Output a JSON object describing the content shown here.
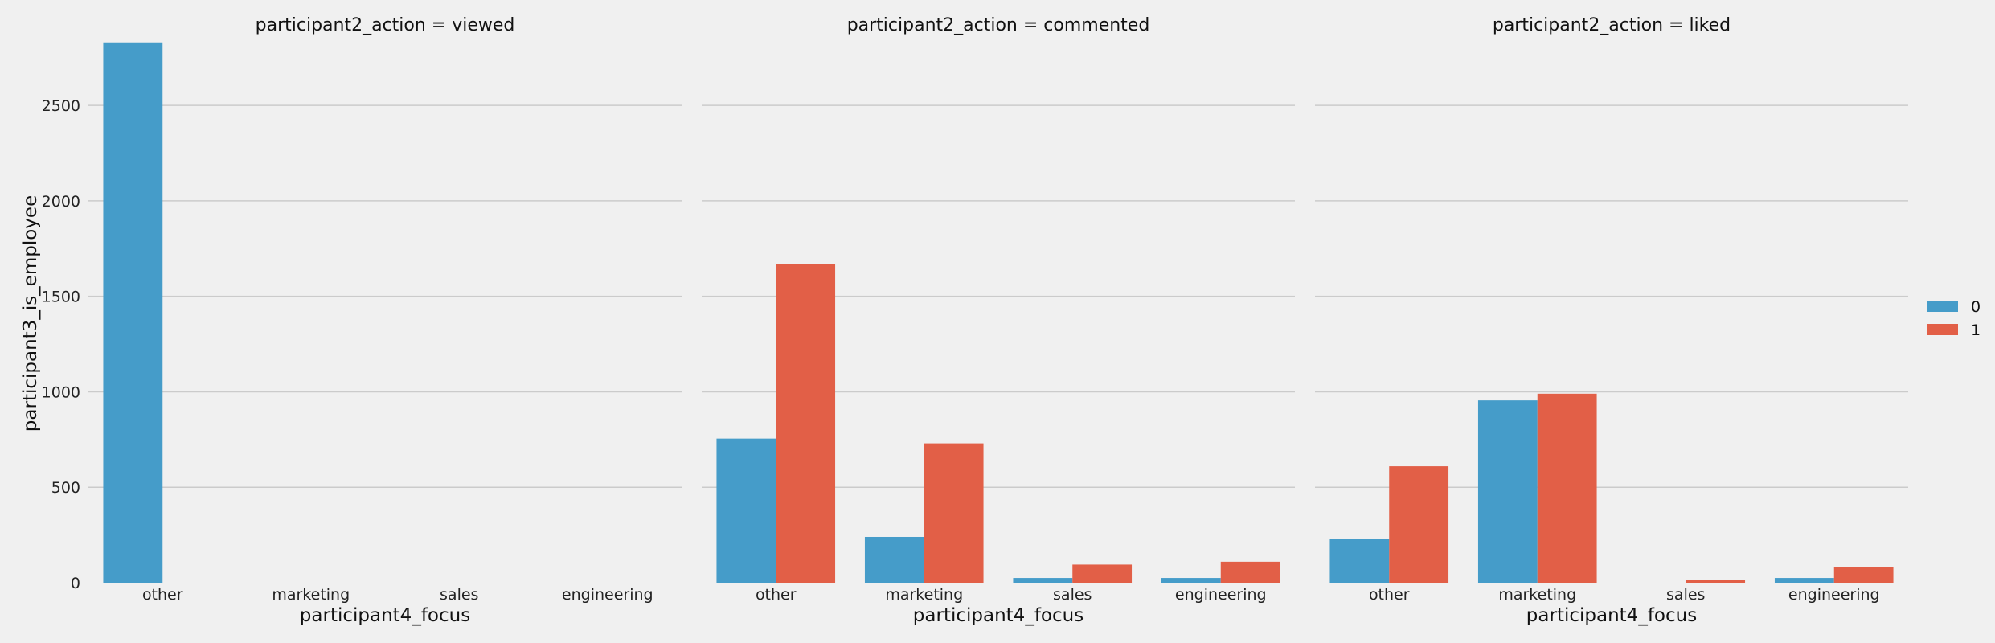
{
  "chart_data": {
    "type": "bar",
    "ylabel": "participant3_is_employee",
    "xlabel": "participant4_focus",
    "categories": [
      "other",
      "marketing",
      "sales",
      "engineering"
    ],
    "y_ticks": [
      "0",
      "500",
      "1000",
      "1500",
      "2000",
      "2500"
    ],
    "ylim": [
      0,
      2850
    ],
    "grid": true,
    "legend": {
      "placement": "right",
      "entries": [
        "0",
        "1"
      ]
    },
    "colors": {
      "0": "#459cc9",
      "1": "#e25f47",
      "background": "#f0f0f0",
      "grid": "#cbcbcb"
    },
    "panels": [
      {
        "title": "participant2_action = viewed",
        "series": [
          {
            "name": "0",
            "values": [
              2830,
              0,
              0,
              0
            ]
          },
          {
            "name": "1",
            "values": [
              0,
              0,
              0,
              0
            ]
          }
        ]
      },
      {
        "title": "participant2_action = commented",
        "series": [
          {
            "name": "0",
            "values": [
              755,
              240,
              25,
              25
            ]
          },
          {
            "name": "1",
            "values": [
              1670,
              730,
              95,
              110
            ]
          }
        ]
      },
      {
        "title": "participant2_action = liked",
        "series": [
          {
            "name": "0",
            "values": [
              230,
              955,
              0,
              25
            ]
          },
          {
            "name": "1",
            "values": [
              610,
              990,
              15,
              80
            ]
          }
        ]
      }
    ]
  }
}
